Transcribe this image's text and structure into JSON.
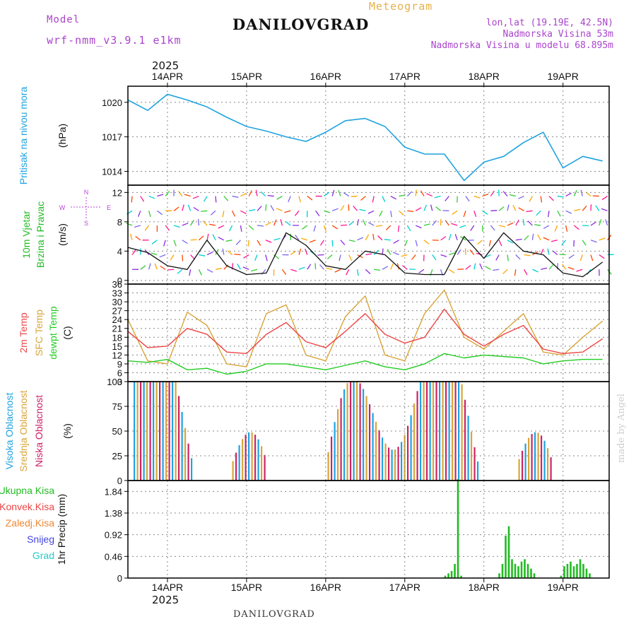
{
  "header": {
    "model_label": "Model",
    "model_name": "wrf-nmm_v3.9.1 e1km",
    "title": "DANILOVGRAD",
    "subtitle": "Meteogram",
    "lonlat": "lon,lat (19.19E, 42.5N)",
    "elevation": "Nadmorska Visina 53m",
    "model_elevation": "Nadmorska Visina u modelu 68.895m",
    "footer": "DANILOVGRAD",
    "watermark": "made by Angel"
  },
  "colors": {
    "pressure": "#1fa3e0",
    "wind_label": "#22bb22",
    "compass": "#bb44dd",
    "temp2m": "#ee4444",
    "sfc": "#d9a53a",
    "dewpt": "#22cc22",
    "high_cloud": "#1fa3e0",
    "mid_cloud": "#d9a53a",
    "low_cloud": "#cc2266",
    "total_precip": "#22bb22",
    "conv_precip": "#ee4444",
    "frozen_precip": "#ee8833",
    "snow": "#4444dd",
    "hail": "#22cccc",
    "header_purple": "#aa44cc",
    "header_orange": "#e8b04a"
  },
  "chart_data": [
    {
      "type": "line",
      "title": "",
      "ylabel": "(hPa)",
      "series_label": "Pritisak na nivou mora",
      "x": [
        "2025-04-13T12",
        "2025-04-13T18",
        "2025-04-14T00",
        "2025-04-14T06",
        "2025-04-14T12",
        "2025-04-14T18",
        "2025-04-15T00",
        "2025-04-15T06",
        "2025-04-15T12",
        "2025-04-15T18",
        "2025-04-16T00",
        "2025-04-16T06",
        "2025-04-16T12",
        "2025-04-16T18",
        "2025-04-17T00",
        "2025-04-17T06",
        "2025-04-17T12",
        "2025-04-17T18",
        "2025-04-18T00",
        "2025-04-18T06",
        "2025-04-18T12",
        "2025-04-18T18",
        "2025-04-19T00",
        "2025-04-19T06",
        "2025-04-19T12"
      ],
      "series": [
        {
          "values": [
            1020.2,
            1019.3,
            1020.7,
            1020.2,
            1019.6,
            1018.7,
            1017.9,
            1017.5,
            1017.0,
            1016.6,
            1017.4,
            1018.4,
            1018.6,
            1017.9,
            1016.1,
            1015.5,
            1015.5,
            1013.2,
            1014.8,
            1015.3,
            1016.5,
            1017.4,
            1014.3,
            1015.3,
            1014.9
          ]
        }
      ],
      "yticks": [
        1014,
        1017,
        1020
      ],
      "ylim": [
        1012.8,
        1021.4
      ],
      "grid": true
    },
    {
      "type": "line",
      "ylabel": "(m/s)",
      "series_label": [
        "10m Vjetar",
        "Brzina i Pravac"
      ],
      "compass_labels": {
        "n": "N",
        "s": "S",
        "e": "E",
        "w": "W"
      },
      "x": [
        "2025-04-13T12",
        "2025-04-13T18",
        "2025-04-14T00",
        "2025-04-14T06",
        "2025-04-14T12",
        "2025-04-14T18",
        "2025-04-15T00",
        "2025-04-15T06",
        "2025-04-15T12",
        "2025-04-15T18",
        "2025-04-16T00",
        "2025-04-16T06",
        "2025-04-16T12",
        "2025-04-16T18",
        "2025-04-17T00",
        "2025-04-17T06",
        "2025-04-17T12",
        "2025-04-17T18",
        "2025-04-18T00",
        "2025-04-18T06",
        "2025-04-18T12",
        "2025-04-18T18",
        "2025-04-19T00",
        "2025-04-19T06",
        "2025-04-19T12"
      ],
      "series": [
        {
          "values": [
            4.5,
            3.8,
            2.0,
            1.5,
            5.5,
            2.0,
            0.8,
            1.0,
            6.5,
            4.8,
            2.0,
            1.5,
            4.0,
            3.5,
            1.0,
            0.8,
            0.8,
            6.0,
            3.0,
            6.5,
            4.0,
            3.5,
            1.0,
            0.5,
            2.5
          ]
        }
      ],
      "yticks": [
        0,
        4,
        8,
        12
      ],
      "ylim": [
        -0.5,
        13
      ],
      "grid": true
    },
    {
      "type": "line",
      "ylabel": "(C)",
      "series_label": [
        "2m Temp",
        "SFC Temp",
        "dewpt Temp"
      ],
      "x": [
        "2025-04-13T12",
        "2025-04-13T18",
        "2025-04-14T00",
        "2025-04-14T06",
        "2025-04-14T12",
        "2025-04-14T18",
        "2025-04-15T00",
        "2025-04-15T06",
        "2025-04-15T12",
        "2025-04-15T18",
        "2025-04-16T00",
        "2025-04-16T06",
        "2025-04-16T12",
        "2025-04-16T18",
        "2025-04-17T00",
        "2025-04-17T06",
        "2025-04-17T12",
        "2025-04-17T18",
        "2025-04-18T00",
        "2025-04-18T06",
        "2025-04-18T12",
        "2025-04-18T18",
        "2025-04-19T00",
        "2025-04-19T06",
        "2025-04-19T12"
      ],
      "series": [
        {
          "name": "2m Temp",
          "values": [
            20.0,
            14.5,
            15.0,
            21.0,
            19.0,
            13.0,
            12.5,
            19.0,
            23.0,
            16.5,
            14.5,
            20.0,
            26.0,
            19.0,
            16.0,
            18.0,
            27.5,
            19.0,
            15.0,
            19.0,
            22.0,
            14.0,
            12.5,
            13.0,
            17.5
          ]
        },
        {
          "name": "SFC Temp",
          "values": [
            24.0,
            10.0,
            9.0,
            26.5,
            22.0,
            9.0,
            8.0,
            26.0,
            29.0,
            12.0,
            10.0,
            25.0,
            32.0,
            12.0,
            10.0,
            26.0,
            34.0,
            18.0,
            14.0,
            20.0,
            26.0,
            13.0,
            12.0,
            18.0,
            23.5
          ]
        },
        {
          "name": "dewpt Temp",
          "values": [
            10.0,
            9.5,
            10.5,
            7.0,
            7.5,
            5.5,
            6.5,
            9.0,
            9.0,
            8.0,
            7.0,
            8.5,
            10.0,
            8.0,
            7.0,
            9.0,
            12.5,
            11.0,
            12.0,
            11.5,
            11.0,
            9.0,
            10.0,
            10.5,
            10.5
          ]
        }
      ],
      "yticks": [
        3,
        6,
        9,
        12,
        15,
        18,
        21,
        24,
        27,
        30,
        33,
        36
      ],
      "ylim": [
        3,
        36
      ],
      "grid": true
    },
    {
      "type": "bar",
      "ylabel": "(%)",
      "series_label": [
        "Visoka Oblacnost",
        "Srednja Oblacnost",
        "Niska Oblacnost"
      ],
      "yticks": [
        0,
        25,
        50,
        75,
        100
      ],
      "ylim": [
        0,
        100
      ],
      "grid": true
    },
    {
      "type": "bar",
      "ylabel": "1hr Precip (mm)",
      "series_label": [
        "Ukupna Kisa",
        "Konvek.Kisa",
        "Zaledj.Kisa",
        "Snijeg",
        "Grad"
      ],
      "yticks": [
        0,
        0.46,
        0.92,
        1.38,
        1.84
      ],
      "ylim": [
        0,
        2.07
      ],
      "grid": true
    }
  ],
  "xaxis": {
    "year": "2025",
    "ticks": [
      "14APR",
      "15APR",
      "16APR",
      "17APR",
      "18APR",
      "19APR"
    ]
  }
}
